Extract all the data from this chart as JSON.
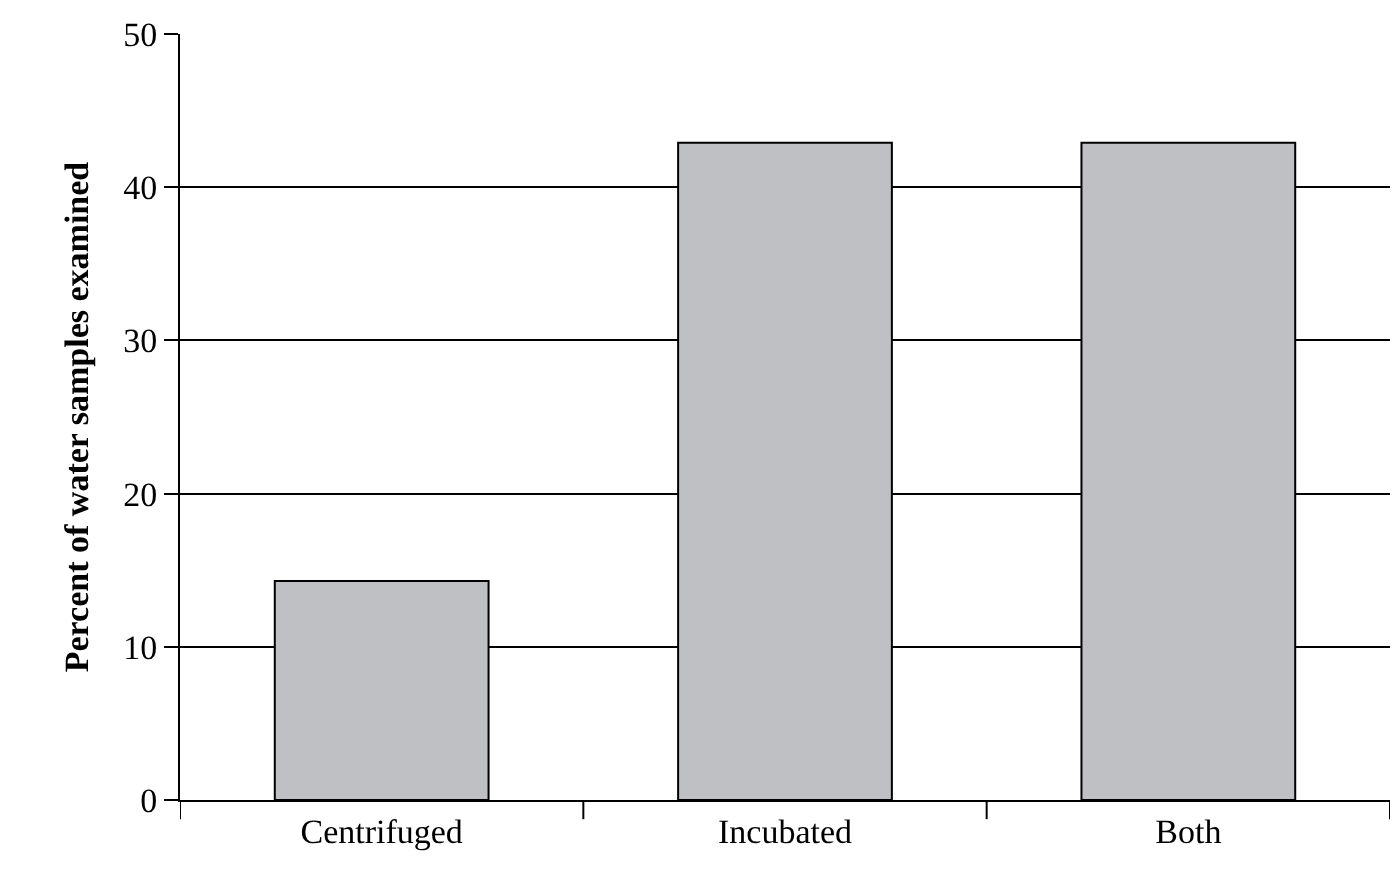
{
  "chart_data": {
    "type": "bar",
    "ylabel": "Percent of water samples examined",
    "categories": [
      "Centrifuged",
      "Incubated",
      "Both"
    ],
    "values": [
      14.3,
      42.9,
      42.9
    ],
    "color": "#bfc0c4",
    "ylim": [
      0,
      50
    ],
    "yticks": [
      0,
      10,
      20,
      30,
      40,
      50
    ],
    "grid": "y"
  }
}
